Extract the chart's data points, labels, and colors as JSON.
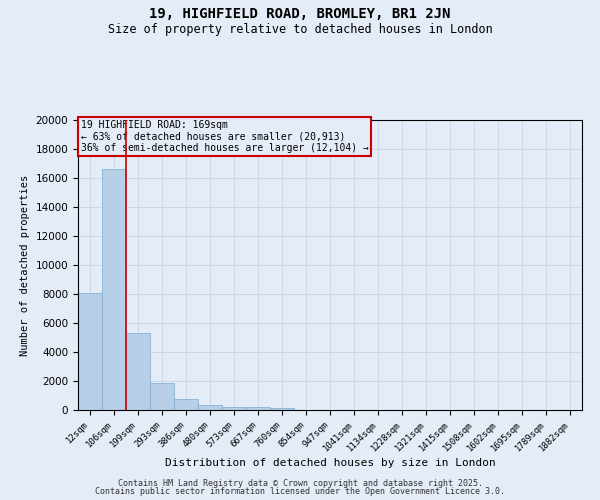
{
  "title1": "19, HIGHFIELD ROAD, BROMLEY, BR1 2JN",
  "title2": "Size of property relative to detached houses in London",
  "xlabel": "Distribution of detached houses by size in London",
  "ylabel": "Number of detached properties",
  "categories": [
    "12sqm",
    "106sqm",
    "199sqm",
    "293sqm",
    "386sqm",
    "480sqm",
    "573sqm",
    "667sqm",
    "760sqm",
    "854sqm",
    "947sqm",
    "1041sqm",
    "1134sqm",
    "1228sqm",
    "1321sqm",
    "1415sqm",
    "1508sqm",
    "1602sqm",
    "1695sqm",
    "1789sqm",
    "1882sqm"
  ],
  "values": [
    8100,
    16600,
    5300,
    1850,
    750,
    330,
    220,
    180,
    120,
    0,
    0,
    0,
    0,
    0,
    0,
    0,
    0,
    0,
    0,
    0,
    0
  ],
  "bar_color": "#b8cfe8",
  "bar_edge_color": "#7aaad0",
  "vline_color": "#cc0000",
  "annotation_title": "19 HIGHFIELD ROAD: 169sqm",
  "annotation_line1": "← 63% of detached houses are smaller (20,913)",
  "annotation_line2": "36% of semi-detached houses are larger (12,104) →",
  "annotation_box_color": "#cc0000",
  "ylim": [
    0,
    20000
  ],
  "yticks": [
    0,
    2000,
    4000,
    6000,
    8000,
    10000,
    12000,
    14000,
    16000,
    18000,
    20000
  ],
  "grid_color": "#c8d4e8",
  "bg_color": "#e4ecf8",
  "footer1": "Contains HM Land Registry data © Crown copyright and database right 2025.",
  "footer2": "Contains public sector information licensed under the Open Government Licence 3.0."
}
